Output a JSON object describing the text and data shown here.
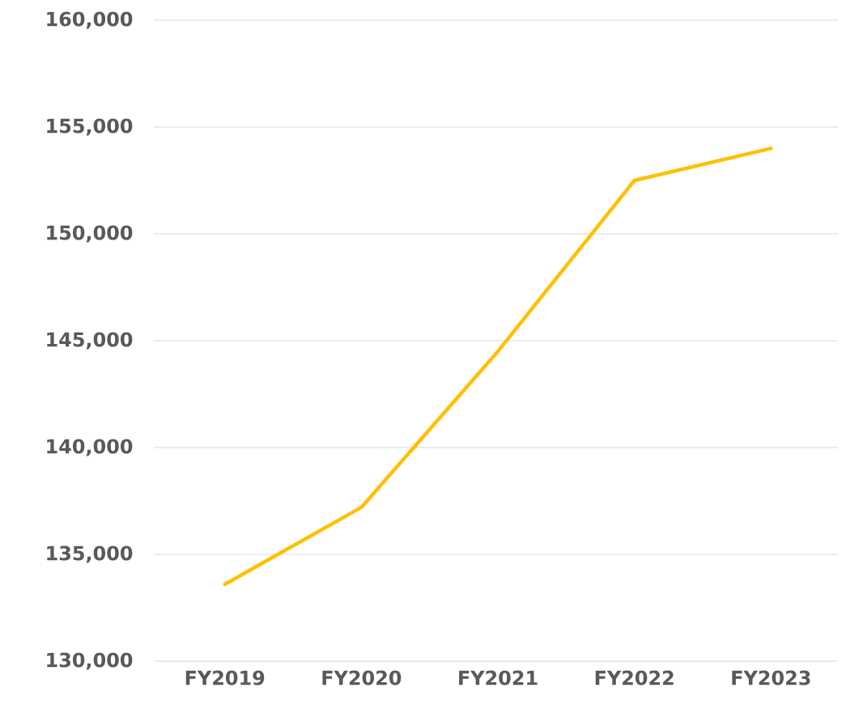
{
  "chart_data": {
    "type": "line",
    "categories": [
      "FY2019",
      "FY2020",
      "FY2021",
      "FY2022",
      "FY2023"
    ],
    "series": [
      {
        "color": "#ffc000",
        "values": [
          133600,
          137200,
          144500,
          152500,
          154000
        ]
      }
    ],
    "ylim": [
      130000,
      160000
    ],
    "yticks": [
      {
        "value": 130000,
        "label": "130,000"
      },
      {
        "value": 135000,
        "label": "135,000"
      },
      {
        "value": 140000,
        "label": "140,000"
      },
      {
        "value": 145000,
        "label": "145,000"
      },
      {
        "value": 150000,
        "label": "150,000"
      },
      {
        "value": 155000,
        "label": "155,000"
      },
      {
        "value": 160000,
        "label": "160,000"
      }
    ],
    "grid": "y",
    "legend": false,
    "marker": "none",
    "line_style": "solid"
  }
}
